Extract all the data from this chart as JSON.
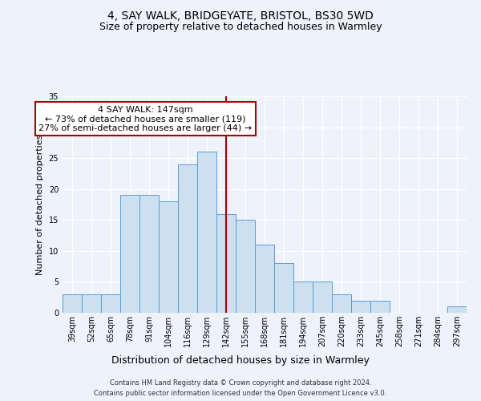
{
  "title": "4, SAY WALK, BRIDGEYATE, BRISTOL, BS30 5WD",
  "subtitle": "Size of property relative to detached houses in Warmley",
  "xlabel": "Distribution of detached houses by size in Warmley",
  "ylabel": "Number of detached properties",
  "categories": [
    "39sqm",
    "52sqm",
    "65sqm",
    "78sqm",
    "91sqm",
    "104sqm",
    "116sqm",
    "129sqm",
    "142sqm",
    "155sqm",
    "168sqm",
    "181sqm",
    "194sqm",
    "207sqm",
    "220sqm",
    "233sqm",
    "245sqm",
    "258sqm",
    "271sqm",
    "284sqm",
    "297sqm"
  ],
  "values": [
    3,
    3,
    3,
    19,
    19,
    18,
    24,
    26,
    16,
    15,
    11,
    8,
    5,
    5,
    3,
    2,
    2,
    0,
    0,
    0,
    1
  ],
  "bar_color": "#cce0f0",
  "bar_edge_color": "#5b9bd5",
  "ylim": [
    0,
    35
  ],
  "yticks": [
    0,
    5,
    10,
    15,
    20,
    25,
    30,
    35
  ],
  "vline_x_idx": 8,
  "vline_color": "#aa0000",
  "annotation_line1": "4 SAY WALK: 147sqm",
  "annotation_line2": "← 73% of detached houses are smaller (119)",
  "annotation_line3": "27% of semi-detached houses are larger (44) →",
  "annotation_box_facecolor": "#ffffff",
  "annotation_box_edgecolor": "#aa0000",
  "footer_line1": "Contains HM Land Registry data © Crown copyright and database right 2024.",
  "footer_line2": "Contains public sector information licensed under the Open Government Licence v3.0.",
  "background_color": "#eef2fb",
  "grid_color": "#ffffff",
  "title_fontsize": 10,
  "subtitle_fontsize": 9,
  "tick_fontsize": 7,
  "ylabel_fontsize": 8,
  "xlabel_fontsize": 9,
  "footer_fontsize": 6,
  "annotation_fontsize": 8
}
